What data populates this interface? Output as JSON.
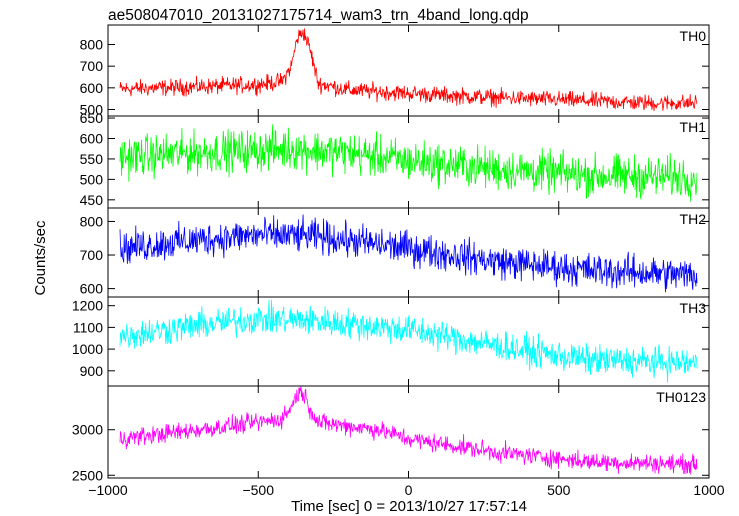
{
  "chart_data": {
    "type": "line",
    "title": "ae508047010_20131027175714_wam3_trn_4band_long.qdp",
    "xlabel": "Time [sec] 0 = 2013/10/27 17:57:14",
    "ylabel": "Counts/sec",
    "xlim": [
      -1000,
      1000
    ],
    "x_ticks": [
      -1000,
      -500,
      0,
      500,
      1000
    ],
    "x_tick_labels": [
      "−1000",
      "−500",
      "0",
      "500",
      "1000"
    ],
    "x_range_data": [
      -960,
      960
    ],
    "panels": [
      {
        "name": "TH0",
        "color": "#ff0000",
        "ylim": [
          470,
          890
        ],
        "y_ticks": [
          500,
          600,
          700,
          800
        ],
        "y_tick_labels": [
          "500",
          "600",
          "700",
          "800"
        ],
        "trend": {
          "x": [
            -960,
            -700,
            -500,
            -420,
            -390,
            -370,
            -350,
            -330,
            -300,
            -200,
            0,
            200,
            500,
            800,
            960
          ],
          "y": [
            595,
            605,
            615,
            630,
            700,
            830,
            860,
            790,
            620,
            590,
            575,
            560,
            545,
            530,
            530
          ]
        },
        "noise": 42
      },
      {
        "name": "TH1",
        "color": "#00ff00",
        "ylim": [
          430,
          655
        ],
        "y_ticks": [
          450,
          500,
          550,
          600,
          650
        ],
        "y_tick_labels": [
          "450",
          "500",
          "550",
          "600",
          "650"
        ],
        "trend": {
          "x": [
            -960,
            -700,
            -400,
            -200,
            0,
            300,
            600,
            960
          ],
          "y": [
            555,
            565,
            575,
            565,
            545,
            525,
            510,
            505
          ]
        },
        "noise": 55
      },
      {
        "name": "TH2",
        "color": "#0000ff",
        "ylim": [
          575,
          840
        ],
        "y_ticks": [
          600,
          700,
          800
        ],
        "y_tick_labels": [
          "600",
          "700",
          "800"
        ],
        "trend": {
          "x": [
            -960,
            -700,
            -500,
            -300,
            0,
            300,
            600,
            960
          ],
          "y": [
            720,
            745,
            760,
            755,
            720,
            680,
            655,
            640
          ]
        },
        "noise": 55
      },
      {
        "name": "TH3",
        "color": "#00ffff",
        "ylim": [
          830,
          1240
        ],
        "y_ticks": [
          900,
          1000,
          1100,
          1200
        ],
        "y_tick_labels": [
          "900",
          "1000",
          "1100",
          "1200"
        ],
        "trend": {
          "x": [
            -960,
            -700,
            -500,
            -300,
            0,
            200,
            400,
            600,
            960
          ],
          "y": [
            1060,
            1110,
            1140,
            1130,
            1090,
            1040,
            990,
            950,
            935
          ]
        },
        "noise": 75
      },
      {
        "name": "TH0123",
        "color": "#ff00ff",
        "ylim": [
          2470,
          3480
        ],
        "y_ticks": [
          2500,
          3000
        ],
        "y_tick_labels": [
          "2500",
          "3000"
        ],
        "trend": {
          "x": [
            -960,
            -700,
            -500,
            -420,
            -390,
            -370,
            -350,
            -330,
            -300,
            -100,
            0,
            300,
            600,
            960
          ],
          "y": [
            2900,
            3000,
            3080,
            3120,
            3250,
            3400,
            3410,
            3250,
            3080,
            3000,
            2900,
            2750,
            2650,
            2620
          ]
        },
        "noise": 110
      }
    ]
  }
}
